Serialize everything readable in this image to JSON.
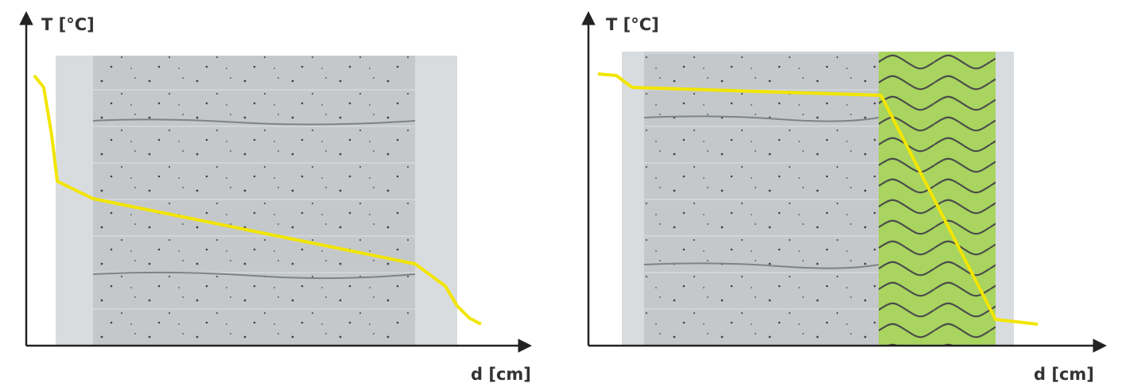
{
  "panels": [
    {
      "y_label": "T [°C]",
      "x_label": "d [cm]"
    },
    {
      "y_label": "T [°C]",
      "x_label": "d [cm]"
    }
  ]
}
